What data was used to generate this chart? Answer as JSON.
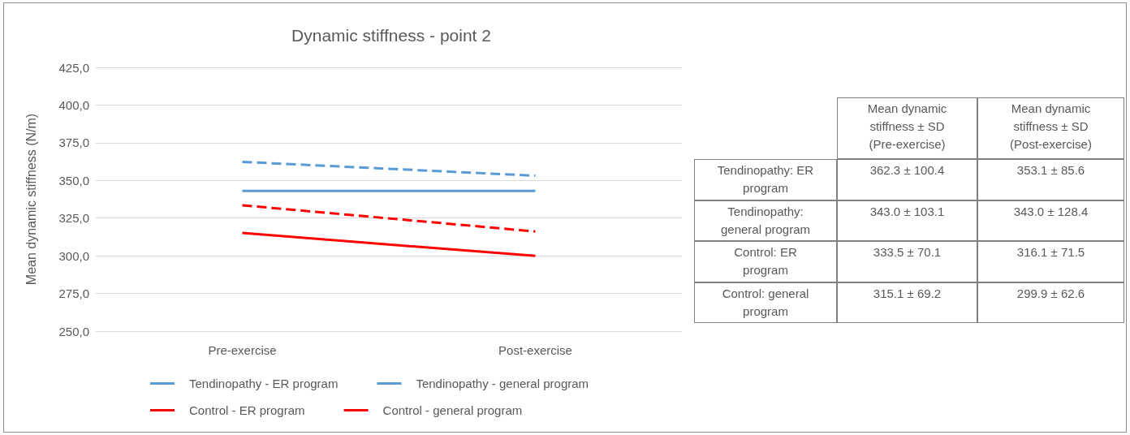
{
  "chart_data": {
    "type": "line",
    "title": "Dynamic stiffness - point 2",
    "ylabel": "Mean dynamic stiffness (N/m)",
    "categories": [
      "Pre-exercise",
      "Post-exercise"
    ],
    "series": [
      {
        "name": "Tendinopathy - ER program",
        "color": "#5b9bd5",
        "line_style": "dashed",
        "values": [
          362.3,
          353.1
        ]
      },
      {
        "name": "Tendinopathy - general program",
        "color": "#5b9bd5",
        "line_style": "solid",
        "values": [
          343.0,
          343.0
        ]
      },
      {
        "name": "Control - ER program",
        "color": "#ff0000",
        "line_style": "dashed",
        "values": [
          333.5,
          316.1
        ]
      },
      {
        "name": "Control - general program",
        "color": "#ff0000",
        "line_style": "solid",
        "values": [
          315.1,
          299.9
        ]
      }
    ],
    "annotations": [
      "Mean dynamic stiffness ± SD (Pre-exercise)",
      "Mean dynamic stiffness ± SD (Post-exercise)",
      "Tendinopathy: ER program",
      "362.3 ± 100.4",
      "353.1 ± 85.6",
      "Tendinopathy: general program",
      "343.0 ± 103.1",
      "343.0 ± 128.4",
      "Control: ER program",
      "333.5 ± 70.1",
      "316.1 ± 71.5",
      "Control: general program",
      "315.1 ± 69.2",
      "299.9 ± 62.6"
    ],
    "ylim": [
      250,
      425
    ],
    "yticks": [
      {
        "value": 250,
        "label": "250,0"
      },
      {
        "value": 275,
        "label": "275,0"
      },
      {
        "value": 300,
        "label": "300,0"
      },
      {
        "value": 325,
        "label": "325,0"
      },
      {
        "value": 350,
        "label": "350,0"
      },
      {
        "value": 375,
        "label": "375,0"
      },
      {
        "value": 400,
        "label": "400,0"
      },
      {
        "value": 425,
        "label": "425,0"
      }
    ],
    "grid": "y",
    "legend": "bottom",
    "marker": "none"
  }
}
